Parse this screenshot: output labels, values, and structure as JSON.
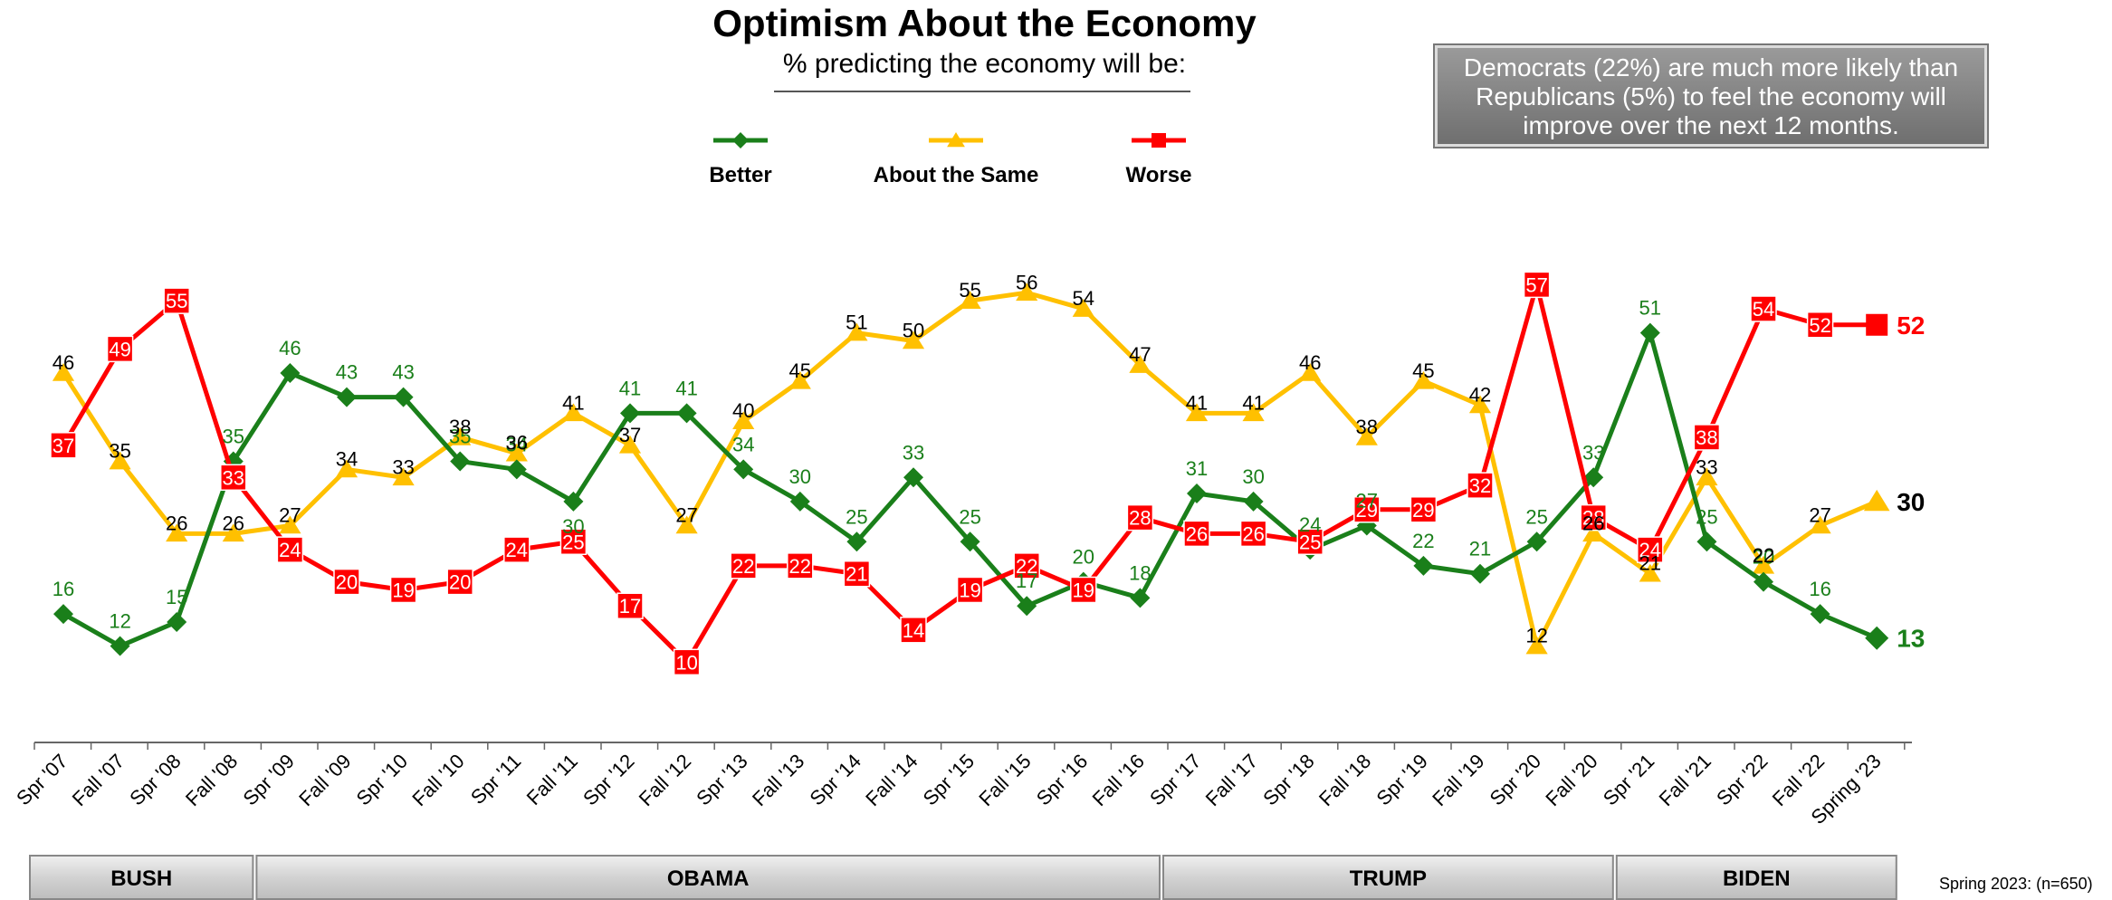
{
  "chart_data": {
    "type": "line",
    "title": "Optimism About the Economy",
    "subtitle": "% predicting the economy will be:",
    "categories": [
      "Spr '07",
      "Fall '07",
      "Spr '08",
      "Fall '08",
      "Spr '09",
      "Fall '09",
      "Spr '10",
      "Fall '10",
      "Spr '11",
      "Fall '11",
      "Spr '12",
      "Fall '12",
      "Spr '13",
      "Fall '13",
      "Spr '14",
      "Fall '14",
      "Spr '15",
      "Fall '15",
      "Spr '16",
      "Fall '16",
      "Spr '17",
      "Fall '17",
      "Spr '18",
      "Fall '18",
      "Spr '19",
      "Fall '19",
      "Spr '20",
      "Fall '20",
      "Spr '21",
      "Fall '21",
      "Spr '22",
      "Fall '22",
      "Spring '23"
    ],
    "series": [
      {
        "name": "Better",
        "color": "#1a7f1a",
        "marker": "diamond",
        "values": [
          16,
          12,
          15,
          35,
          46,
          43,
          43,
          35,
          34,
          30,
          41,
          41,
          34,
          30,
          25,
          33,
          25,
          17,
          20,
          18,
          31,
          30,
          24,
          27,
          22,
          21,
          25,
          33,
          51,
          25,
          20,
          16,
          13
        ]
      },
      {
        "name": "About the Same",
        "color": "#ffc000",
        "marker": "triangle",
        "values": [
          46,
          35,
          26,
          26,
          27,
          34,
          33,
          38,
          36,
          41,
          37,
          27,
          40,
          45,
          51,
          50,
          55,
          56,
          54,
          47,
          41,
          41,
          46,
          38,
          45,
          42,
          12,
          26,
          21,
          33,
          22,
          27,
          30
        ]
      },
      {
        "name": "Worse",
        "color": "#ff0000",
        "marker": "square",
        "values": [
          37,
          49,
          55,
          33,
          24,
          20,
          19,
          20,
          24,
          25,
          17,
          10,
          22,
          22,
          21,
          14,
          19,
          22,
          19,
          28,
          26,
          26,
          25,
          29,
          29,
          32,
          57,
          28,
          24,
          38,
          54,
          52,
          52
        ]
      }
    ],
    "ylim": [
      0,
      62
    ],
    "grid": false,
    "legend_position": "top-center",
    "eras": [
      {
        "label": "BUSH",
        "start": 0,
        "end": 4
      },
      {
        "label": "OBAMA",
        "start": 4,
        "end": 20
      },
      {
        "label": "TRUMP",
        "start": 20,
        "end": 28
      },
      {
        "label": "BIDEN",
        "start": 28,
        "end": 33
      }
    ]
  },
  "callout": "Democrats (22%) are much more likely than Republicans (5%) to feel the economy will improve over the next 12 months.",
  "footnote": "Spring 2023:  (n=650)"
}
